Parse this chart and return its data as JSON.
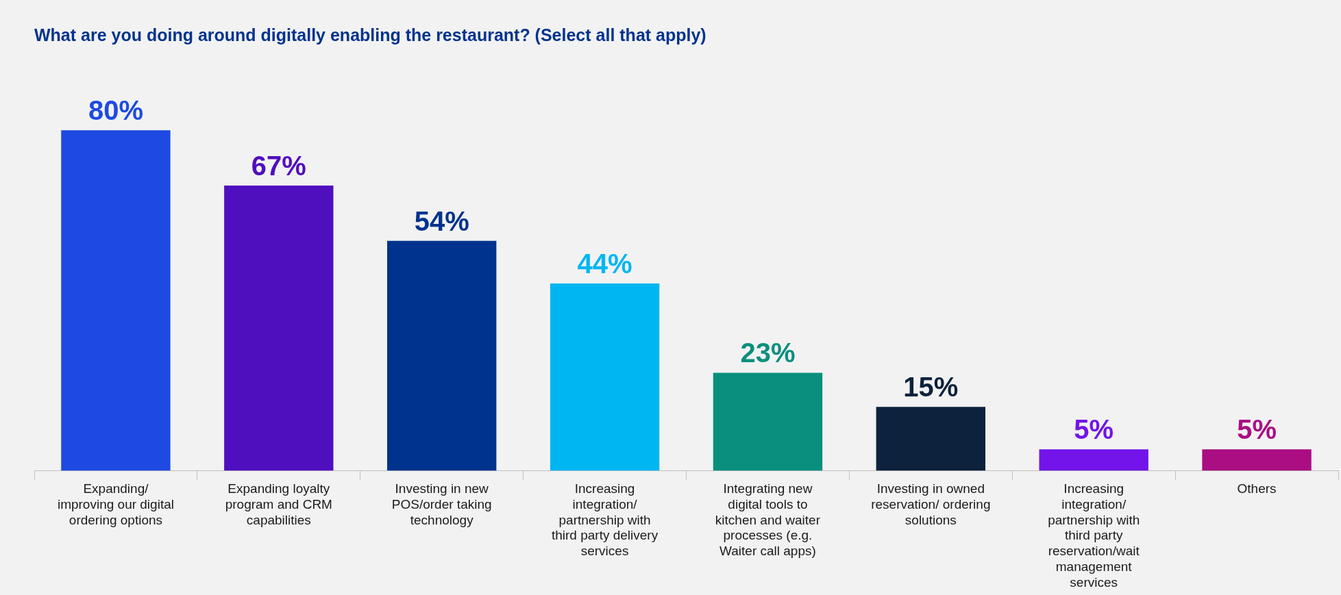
{
  "chart_data": {
    "type": "bar",
    "title": "What are you doing around digitally enabling the restaurant? (Select all that apply)",
    "categories": [
      "Expanding/ improving our digital ordering options",
      "Expanding loyalty program and CRM capabilities",
      "Investing in new POS/order taking technology",
      "Increasing integration/ partnership with third party delivery services",
      "Integrating new digital tools to kitchen and waiter processes (e.g. Waiter call apps)",
      "Investing in owned reservation/ ordering solutions",
      "Increasing integration/ partnership with third party reservation/wait management services",
      "Others"
    ],
    "values": [
      80,
      67,
      54,
      44,
      23,
      15,
      5,
      5
    ],
    "colors": [
      "#1e4ae3",
      "#500fbe",
      "#00338d",
      "#00b6f2",
      "#0a8f7e",
      "#0c223d",
      "#7214ea",
      "#aa0e82"
    ],
    "value_labels": [
      "80%",
      "67%",
      "54%",
      "44%",
      "23%",
      "15%",
      "5%",
      "5%"
    ],
    "grid": false,
    "legend": false,
    "tick_labels": "x"
  }
}
